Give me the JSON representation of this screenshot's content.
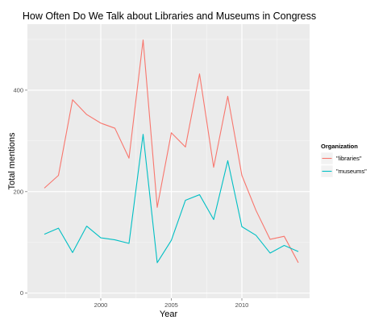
{
  "chart_data": {
    "type": "line",
    "title": "How Often Do We Talk about Libraries and Museums in Congress",
    "xlabel": "Year",
    "ylabel": "Total mentions",
    "xlim": [
      1994.8,
      2014.8
    ],
    "ylim": [
      -10,
      530
    ],
    "x_ticks": [
      2000,
      2005,
      2010
    ],
    "x_tick_labels": [
      "2000",
      "2005",
      "2010"
    ],
    "y_ticks": [
      0,
      200,
      400
    ],
    "y_tick_labels": [
      "0",
      "200",
      "400"
    ],
    "grid": true,
    "legend": {
      "title": "Organization",
      "position": "right"
    },
    "x": [
      1996,
      1997,
      1998,
      1999,
      2000,
      2001,
      2002,
      2003,
      2004,
      2005,
      2006,
      2007,
      2008,
      2009,
      2010,
      2011,
      2012,
      2013,
      2014
    ],
    "series": [
      {
        "name": "\"libraries\"",
        "color": "#f8766d",
        "values": [
          207,
          232,
          381,
          352,
          335,
          325,
          266,
          499,
          169,
          316,
          288,
          432,
          248,
          388,
          232,
          163,
          106,
          112,
          60
        ]
      },
      {
        "name": "\"museums\"",
        "color": "#00bfc4",
        "values": [
          116,
          128,
          80,
          132,
          109,
          105,
          98,
          313,
          60,
          104,
          183,
          194,
          145,
          261,
          131,
          114,
          79,
          94,
          82
        ]
      }
    ]
  }
}
